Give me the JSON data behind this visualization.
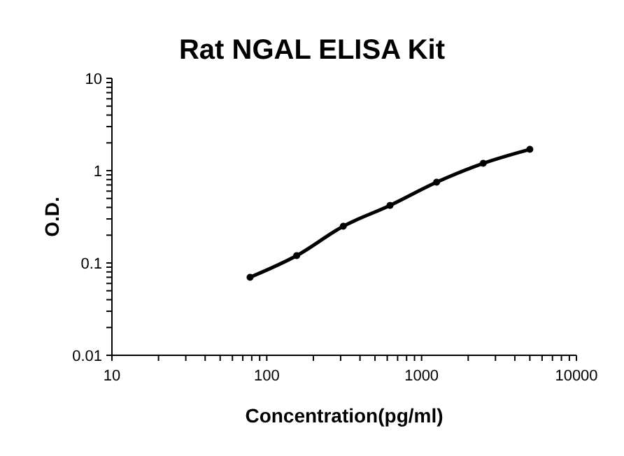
{
  "chart_data": {
    "type": "line",
    "title": "Rat NGAL ELISA Kit",
    "xlabel": "Concentration(pg/ml)",
    "ylabel": "O.D.",
    "x": [
      78,
      156,
      312,
      625,
      1250,
      2500,
      5000
    ],
    "series": [
      {
        "color": "#000000",
        "values": [
          0.07,
          0.12,
          0.25,
          0.42,
          0.75,
          1.2,
          1.7
        ]
      }
    ],
    "log": "xy",
    "marker": "circle",
    "line_style": "solid",
    "xlim": [
      10,
      10000
    ],
    "ylim": [
      0.01,
      10
    ],
    "xticks": [
      10,
      {
        "value": 20,
        "label": null
      },
      {
        "value": 30,
        "label": null
      },
      {
        "value": 40,
        "label": null
      },
      {
        "value": 50,
        "label": null
      },
      {
        "value": 60,
        "label": null
      },
      {
        "value": 70,
        "label": null
      },
      {
        "value": 80,
        "label": null
      },
      {
        "value": 90,
        "label": null
      },
      100,
      {
        "value": 200,
        "label": null
      },
      {
        "value": 300,
        "label": null
      },
      {
        "value": 400,
        "label": null
      },
      {
        "value": 500,
        "label": null
      },
      {
        "value": 600,
        "label": null
      },
      {
        "value": 700,
        "label": null
      },
      {
        "value": 800,
        "label": null
      },
      {
        "value": 900,
        "label": null
      },
      1000,
      {
        "value": 2000,
        "label": null
      },
      {
        "value": 3000,
        "label": null
      },
      {
        "value": 4000,
        "label": null
      },
      {
        "value": 5000,
        "label": null
      },
      {
        "value": 6000,
        "label": null
      },
      {
        "value": 7000,
        "label": null
      },
      {
        "value": 8000,
        "label": null
      },
      {
        "value": 9000,
        "label": null
      },
      10000
    ],
    "yticks": [
      0.01,
      {
        "value": 0.02,
        "label": null
      },
      {
        "value": 0.03,
        "label": null
      },
      {
        "value": 0.04,
        "label": null
      },
      {
        "value": 0.05,
        "label": null
      },
      {
        "value": 0.06,
        "label": null
      },
      {
        "value": 0.07,
        "label": null
      },
      {
        "value": 0.08,
        "label": null
      },
      {
        "value": 0.09,
        "label": null
      },
      0.1,
      {
        "value": 0.2,
        "label": null
      },
      {
        "value": 0.3,
        "label": null
      },
      {
        "value": 0.4,
        "label": null
      },
      {
        "value": 0.5,
        "label": null
      },
      {
        "value": 0.6,
        "label": null
      },
      {
        "value": 0.7,
        "label": null
      },
      {
        "value": 0.8,
        "label": null
      },
      {
        "value": 0.9,
        "label": null
      },
      1,
      {
        "value": 2,
        "label": null
      },
      {
        "value": 3,
        "label": null
      },
      {
        "value": 4,
        "label": null
      },
      {
        "value": 5,
        "label": null
      },
      {
        "value": 6,
        "label": null
      },
      {
        "value": 7,
        "label": null
      },
      {
        "value": 8,
        "label": null
      },
      {
        "value": 9,
        "label": null
      },
      10
    ]
  }
}
